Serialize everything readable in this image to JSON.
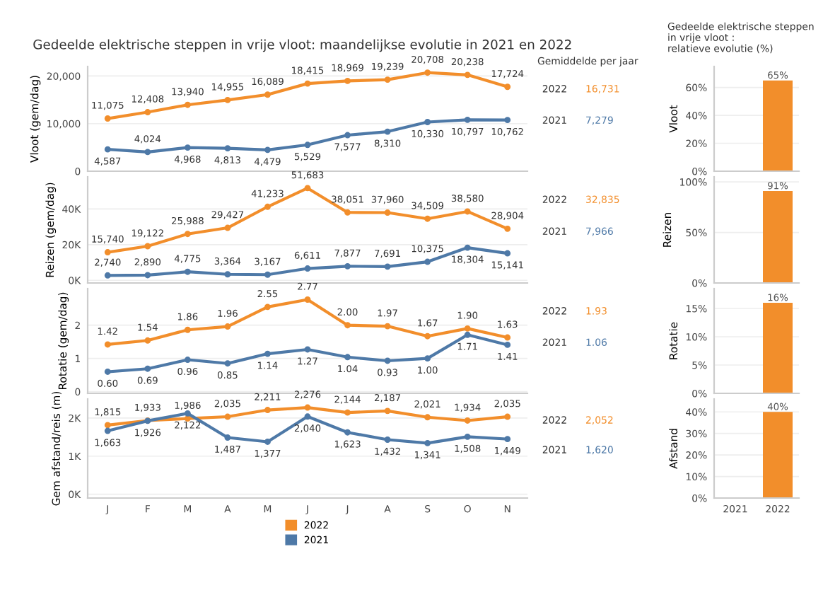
{
  "chart_data": [
    {
      "type": "line",
      "title": "Gedeelde elektrische steppen in vrije vloot: maandelijkse evolutie in 2021 en 2022",
      "ylabel": "Vloot (gem/dag)",
      "categories": [
        null,
        null,
        null,
        null,
        null,
        null,
        null,
        null,
        null,
        null,
        null
      ],
      "ylim": [
        0,
        22000
      ],
      "yticks": [
        {
          "value": 0,
          "label": "0"
        },
        {
          "value": 10000,
          "label": "10,000"
        },
        {
          "value": 20000,
          "label": "20,000"
        }
      ],
      "grid": "y",
      "marker": "circle",
      "tick_labels": "y",
      "series": [
        {
          "color": "#f28e2b",
          "values": [
            11075,
            12408,
            13940,
            14955,
            16089,
            18415,
            18969,
            19239,
            20708,
            20238,
            17724
          ],
          "value_labels": [
            "11,075",
            "12,408",
            "13,940",
            "14,955",
            "16,089",
            "18,415",
            "18,969",
            "19,239",
            "20,708",
            "20,238",
            "17,724"
          ]
        },
        {
          "color": "#4e79a7",
          "values": [
            4587,
            4024,
            4968,
            4813,
            4479,
            5529,
            7577,
            8310,
            10330,
            10797,
            10762
          ],
          "value_labels": [
            "4,587",
            "4,024",
            "4,968",
            "4,813",
            "4,479",
            "5,529",
            "7,577",
            "8,310",
            "10,330",
            "10,797",
            "10,762"
          ]
        }
      ]
    },
    {
      "type": "line",
      "ylabel": "Reizen (gem/dag)",
      "categories": [
        null,
        null,
        null,
        null,
        null,
        null,
        null,
        null,
        null,
        null,
        null
      ],
      "ylim": [
        -1500,
        58000
      ],
      "yticks": [
        {
          "value": 0,
          "label": "0K"
        },
        {
          "value": 20000,
          "label": "20K"
        },
        {
          "value": 40000,
          "label": "40K"
        }
      ],
      "grid": "y",
      "marker": "circle",
      "tick_labels": "y",
      "series": [
        {
          "color": "#f28e2b",
          "values": [
            15740,
            19122,
            25988,
            29427,
            41233,
            51683,
            38051,
            37960,
            34509,
            38580,
            28904
          ],
          "value_labels": [
            "15,740",
            "19,122",
            "25,988",
            "29,427",
            "41,233",
            "51,683",
            "38,051",
            "37,960",
            "34,509",
            "38,580",
            "28,904"
          ]
        },
        {
          "color": "#4e79a7",
          "values": [
            2740,
            2890,
            4775,
            3364,
            3167,
            6611,
            7877,
            7691,
            10375,
            18304,
            15141
          ],
          "value_labels": [
            "2,740",
            "2,890",
            "4,775",
            "3,364",
            "3,167",
            "6,611",
            "7,877",
            "7,691",
            "10,375",
            "18,304",
            "15,141"
          ]
        }
      ]
    },
    {
      "type": "line",
      "ylabel": "Rotatie (gem/dag)",
      "categories": [
        null,
        null,
        null,
        null,
        null,
        null,
        null,
        null,
        null,
        null,
        null
      ],
      "ylim": [
        -0.05,
        3.1
      ],
      "yticks": [
        0,
        1,
        2
      ],
      "grid": "y",
      "marker": "circle",
      "tick_labels": "y",
      "series": [
        {
          "color": "#f28e2b",
          "values": [
            1.42,
            1.54,
            1.86,
            1.96,
            2.55,
            2.77,
            2.0,
            1.97,
            1.67,
            1.9,
            1.63
          ],
          "value_labels": [
            "1.42",
            "1.54",
            "1.86",
            "1.96",
            "2.55",
            "2.77",
            "2.00",
            "1.97",
            "1.67",
            "1.90",
            "1.63"
          ]
        },
        {
          "color": "#4e79a7",
          "values": [
            0.6,
            0.69,
            0.96,
            0.85,
            1.14,
            1.27,
            1.04,
            0.93,
            1.0,
            1.71,
            1.41
          ],
          "value_labels": [
            "0.60",
            "0.69",
            "0.96",
            "0.85",
            "1.14",
            "1.27",
            "1.04",
            "0.93",
            "1.00",
            "1.71",
            "1.41"
          ]
        }
      ]
    },
    {
      "type": "line",
      "ylabel": "Gem afstand/reis (m)",
      "categories": [
        "J",
        "F",
        "M",
        "A",
        "M",
        "J",
        "J",
        "A",
        "S",
        "O",
        "N"
      ],
      "ylim": [
        -100,
        2500
      ],
      "yticks": [
        {
          "value": 0,
          "label": "0K"
        },
        {
          "value": 1000,
          "label": "1K"
        },
        {
          "value": 2000,
          "label": "2K"
        }
      ],
      "grid": "y",
      "marker": "circle",
      "legend": "bottom",
      "series": [
        {
          "name": "2022",
          "color": "#f28e2b",
          "values": [
            1815,
            1933,
            1986,
            2035,
            2211,
            2276,
            2144,
            2187,
            2021,
            1934,
            2035
          ],
          "value_labels": [
            "1,815",
            "1,933",
            "1,986",
            "2,035",
            "2,211",
            "2,276",
            "2,144",
            "2,187",
            "2,021",
            "1,934",
            "2,035"
          ]
        },
        {
          "name": "2021",
          "color": "#4e79a7",
          "values": [
            1663,
            1926,
            2122,
            1487,
            1377,
            2040,
            1623,
            1432,
            1341,
            1508,
            1449
          ],
          "value_labels": [
            "1,663",
            "1,926",
            "2,122",
            "1,487",
            "1,377",
            "2,040",
            "1,623",
            "1,432",
            "1,341",
            "1,508",
            "1,449"
          ]
        }
      ]
    },
    {
      "type": "other",
      "title": "Gemiddelde per jaar",
      "categories": [
        "2022",
        "2021"
      ],
      "value_labels": [
        "16,731",
        "7,279"
      ],
      "colors": [
        "#f28e2b",
        "#4e79a7"
      ]
    },
    {
      "type": "other",
      "categories": [
        "2022",
        "2021"
      ],
      "value_labels": [
        "32,835",
        "7,966"
      ],
      "colors": [
        "#f28e2b",
        "#4e79a7"
      ]
    },
    {
      "type": "other",
      "categories": [
        "2022",
        "2021"
      ],
      "value_labels": [
        "1.93",
        "1.06"
      ],
      "colors": [
        "#f28e2b",
        "#4e79a7"
      ]
    },
    {
      "type": "other",
      "categories": [
        "2022",
        "2021"
      ],
      "value_labels": [
        "2,052",
        "1,620"
      ],
      "colors": [
        "#f28e2b",
        "#4e79a7"
      ]
    },
    {
      "type": "bar",
      "title": "Gedeelde elektrische steppen\nin vrije vloot :\nrelatieve evolutie (%)",
      "ylabel": "Vloot",
      "categories": [
        "2021",
        "2022"
      ],
      "values": [
        null,
        65
      ],
      "value_labels": [
        null,
        "65%"
      ],
      "colors": [
        "#f28e2b",
        "#f28e2b"
      ],
      "ylim": [
        0,
        75
      ],
      "yticks": [
        {
          "value": 0,
          "label": "0%"
        },
        {
          "value": 20,
          "label": "20%"
        },
        {
          "value": 40,
          "label": "40%"
        },
        {
          "value": 60,
          "label": "60%"
        }
      ],
      "grid": "y",
      "tick_labels": "y"
    },
    {
      "type": "bar",
      "ylabel": "Reizen",
      "categories": [
        "2021",
        "2022"
      ],
      "values": [
        null,
        91
      ],
      "value_labels": [
        null,
        "91%"
      ],
      "colors": [
        "#f28e2b",
        "#f28e2b"
      ],
      "ylim": [
        0,
        105
      ],
      "yticks": [
        {
          "value": 0,
          "label": "0%"
        },
        {
          "value": 50,
          "label": "50%"
        },
        {
          "value": 100,
          "label": "100%"
        }
      ],
      "grid": "y",
      "tick_labels": "y"
    },
    {
      "type": "bar",
      "ylabel": "Rotatie",
      "categories": [
        "2021",
        "2022"
      ],
      "values": [
        null,
        16
      ],
      "value_labels": [
        null,
        "16%"
      ],
      "colors": [
        "#f28e2b",
        "#f28e2b"
      ],
      "ylim": [
        0,
        18.5
      ],
      "yticks": [
        {
          "value": 0,
          "label": "0%"
        },
        {
          "value": 5,
          "label": "5%"
        },
        {
          "value": 10,
          "label": "10%"
        },
        {
          "value": 15,
          "label": "15%"
        }
      ],
      "grid": "y",
      "tick_labels": "y"
    },
    {
      "type": "bar",
      "ylabel": "Afstand",
      "categories": [
        "2021",
        "2022"
      ],
      "values": [
        null,
        40
      ],
      "value_labels": [
        null,
        "40%"
      ],
      "colors": [
        "#f28e2b",
        "#f28e2b"
      ],
      "ylim": [
        0,
        46
      ],
      "yticks": [
        {
          "value": 0,
          "label": "0%"
        },
        {
          "value": 10,
          "label": "10%"
        },
        {
          "value": 20,
          "label": "20%"
        },
        {
          "value": 30,
          "label": "30%"
        },
        {
          "value": 40,
          "label": "40%"
        }
      ],
      "grid": "y"
    }
  ]
}
